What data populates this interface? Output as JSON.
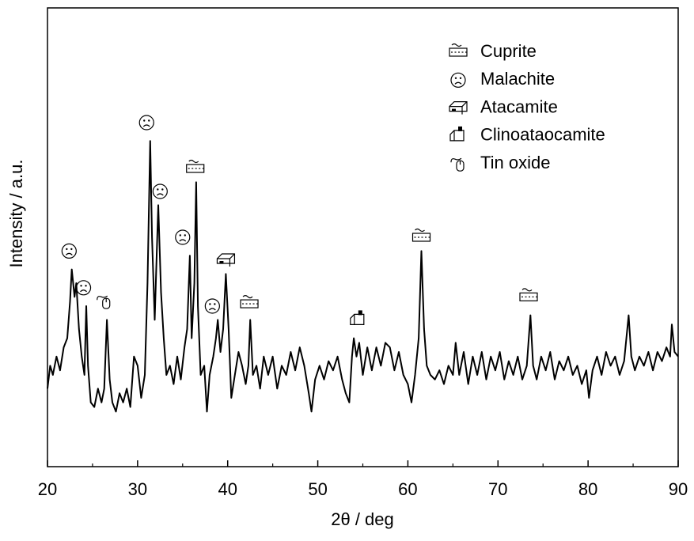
{
  "chart_data": {
    "type": "line",
    "xlabel": "2θ / deg",
    "ylabel": "Intensity / a.u.",
    "xlim": [
      20,
      90
    ],
    "ylim": [
      0,
      100
    ],
    "xticks": [
      20,
      30,
      40,
      50,
      60,
      70,
      80,
      90
    ],
    "xminorticks": [
      25,
      35,
      45,
      55,
      65,
      75,
      85
    ],
    "x": [
      20.0,
      20.3,
      20.6,
      21.0,
      21.4,
      21.8,
      22.2,
      22.5,
      22.7,
      23.0,
      23.2,
      23.5,
      23.8,
      24.1,
      24.3,
      24.5,
      24.8,
      25.2,
      25.6,
      26.0,
      26.3,
      26.6,
      26.9,
      27.2,
      27.6,
      28.0,
      28.4,
      28.8,
      29.2,
      29.6,
      30.0,
      30.4,
      30.8,
      31.1,
      31.4,
      31.6,
      31.9,
      32.1,
      32.3,
      32.6,
      32.9,
      33.2,
      33.6,
      34.0,
      34.4,
      34.8,
      35.2,
      35.5,
      35.8,
      36.0,
      36.3,
      36.5,
      36.7,
      37.0,
      37.4,
      37.7,
      38.0,
      38.4,
      38.7,
      38.9,
      39.2,
      39.5,
      39.8,
      40.1,
      40.4,
      40.8,
      41.2,
      41.6,
      42.0,
      42.3,
      42.5,
      42.8,
      43.2,
      43.6,
      44.0,
      44.5,
      45.0,
      45.5,
      46.0,
      46.5,
      47.0,
      47.5,
      48.0,
      48.5,
      49.0,
      49.3,
      49.7,
      50.2,
      50.7,
      51.2,
      51.7,
      52.2,
      52.7,
      53.1,
      53.5,
      53.8,
      54.0,
      54.3,
      54.6,
      55.0,
      55.5,
      56.0,
      56.5,
      57.0,
      57.5,
      58.0,
      58.5,
      59.0,
      59.5,
      60.0,
      60.4,
      60.8,
      61.2,
      61.5,
      61.8,
      62.1,
      62.5,
      63.0,
      63.5,
      64.0,
      64.5,
      65.0,
      65.3,
      65.7,
      66.2,
      66.7,
      67.2,
      67.7,
      68.2,
      68.7,
      69.2,
      69.7,
      70.2,
      70.7,
      71.2,
      71.7,
      72.2,
      72.7,
      73.2,
      73.6,
      73.9,
      74.3,
      74.8,
      75.3,
      75.8,
      76.3,
      76.8,
      77.3,
      77.8,
      78.3,
      78.8,
      79.3,
      79.8,
      80.1,
      80.5,
      81.0,
      81.5,
      82.0,
      82.5,
      83.0,
      83.5,
      84.0,
      84.5,
      84.8,
      85.2,
      85.7,
      86.2,
      86.7,
      87.2,
      87.7,
      88.2,
      88.7,
      89.1,
      89.3,
      89.6,
      90.0
    ],
    "series": [
      {
        "color": "#000000",
        "values": [
          17,
          22,
          20,
          24,
          21,
          26,
          28,
          36,
          43,
          37,
          40,
          30,
          24,
          20,
          35,
          22,
          14,
          13,
          17,
          14,
          17,
          32,
          19,
          14,
          12,
          16,
          14,
          17,
          13,
          24,
          22,
          15,
          20,
          40,
          71,
          50,
          32,
          45,
          57,
          38,
          28,
          20,
          22,
          18,
          24,
          19,
          26,
          30,
          46,
          28,
          40,
          62,
          35,
          20,
          22,
          12,
          20,
          24,
          28,
          32,
          25,
          30,
          42,
          30,
          15,
          20,
          25,
          22,
          18,
          22,
          32,
          20,
          22,
          17,
          24,
          20,
          24,
          17,
          22,
          20,
          25,
          21,
          26,
          22,
          16,
          12,
          19,
          22,
          19,
          23,
          21,
          24,
          19,
          16,
          14,
          24,
          28,
          24,
          27,
          20,
          26,
          21,
          26,
          22,
          27,
          26,
          21,
          25,
          20,
          18,
          14,
          20,
          28,
          47,
          30,
          22,
          20,
          19,
          21,
          18,
          22,
          20,
          27,
          20,
          25,
          18,
          24,
          20,
          25,
          19,
          24,
          21,
          25,
          19,
          23,
          20,
          24,
          19,
          22,
          33,
          22,
          19,
          24,
          21,
          25,
          19,
          23,
          21,
          24,
          20,
          22,
          18,
          21,
          15,
          21,
          24,
          20,
          25,
          22,
          24,
          20,
          23,
          33,
          24,
          21,
          24,
          22,
          25,
          21,
          25,
          23,
          26,
          24,
          31,
          25,
          24
        ]
      }
    ],
    "phases": [
      {
        "name": "Cuprite",
        "peaks_x": [
          36.4,
          42.4,
          61.5,
          73.4
        ],
        "peaks_y": [
          65,
          35.5,
          50,
          37
        ]
      },
      {
        "name": "Malachite",
        "peaks_x": [
          22.4,
          24.0,
          31.0,
          32.5,
          35.0,
          38.3
        ],
        "peaks_y": [
          47,
          39,
          75,
          60,
          50,
          35
        ]
      },
      {
        "name": "Atacamite",
        "peaks_x": [
          39.8
        ],
        "peaks_y": [
          45
        ]
      },
      {
        "name": "Clinoataocamite",
        "peaks_x": [
          54.5
        ],
        "peaks_y": [
          32
        ]
      },
      {
        "name": "Tin oxide",
        "peaks_x": [
          26.3
        ],
        "peaks_y": [
          36
        ]
      }
    ]
  }
}
